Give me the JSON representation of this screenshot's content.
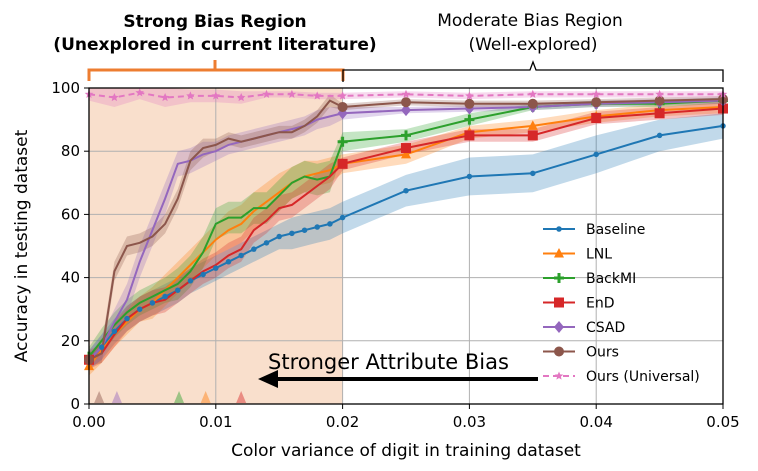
{
  "chart_data": {
    "type": "line",
    "xlabel": "Color variance of digit in training dataset",
    "ylabel": "Accuracy in testing dataset",
    "xlim": [
      0,
      0.05
    ],
    "ylim": [
      0,
      100
    ],
    "xticks": [
      "0.00",
      "0.01",
      "0.02",
      "0.03",
      "0.04",
      "0.05"
    ],
    "yticks": [
      "0",
      "20",
      "40",
      "60",
      "80",
      "100"
    ],
    "grid": true,
    "legend_position": "lower-right",
    "regions": {
      "strong_title_1": "Strong Bias Region",
      "strong_title_2": "(Unexplored in current literature)",
      "strong_range": [
        0,
        0.02
      ],
      "moderate_title_1": "Moderate Bias Region",
      "moderate_title_2": "(Well-explored)",
      "moderate_range": [
        0.02,
        0.05
      ]
    },
    "arrow_label": "Stronger  Attribute  Bias",
    "series": [
      {
        "name": "Baseline",
        "color": "#1f77b4",
        "marker": "dot",
        "x": [
          0,
          0.001,
          0.002,
          0.003,
          0.004,
          0.005,
          0.006,
          0.007,
          0.008,
          0.009,
          0.01,
          0.011,
          0.012,
          0.013,
          0.014,
          0.015,
          0.016,
          0.017,
          0.018,
          0.019,
          0.02,
          0.025,
          0.03,
          0.035,
          0.04,
          0.045,
          0.05
        ],
        "y": [
          14,
          18,
          23,
          27,
          30,
          32,
          34,
          36,
          39,
          41,
          43,
          45,
          47,
          49,
          51,
          53,
          54,
          55,
          56,
          57,
          59,
          67.5,
          72,
          73,
          79,
          85,
          88
        ],
        "band": [
          3,
          4,
          4,
          4,
          4,
          4,
          4,
          4,
          4,
          4,
          4,
          4,
          4,
          4,
          4,
          4,
          5,
          5,
          5,
          5,
          5,
          5,
          6,
          6,
          6,
          5,
          4
        ]
      },
      {
        "name": "LNL",
        "color": "#ff7f0e",
        "marker": "triangle",
        "x": [
          0,
          0.001,
          0.002,
          0.003,
          0.004,
          0.005,
          0.006,
          0.007,
          0.008,
          0.009,
          0.01,
          0.011,
          0.012,
          0.013,
          0.014,
          0.015,
          0.016,
          0.017,
          0.018,
          0.019,
          0.02,
          0.025,
          0.03,
          0.035,
          0.04,
          0.045,
          0.05
        ],
        "y": [
          12,
          17,
          22,
          26,
          30,
          32,
          36,
          40,
          44,
          48,
          52,
          55,
          57,
          61,
          64,
          67,
          70,
          72,
          73,
          74,
          76,
          79,
          86,
          88,
          91,
          93,
          94
        ],
        "band": [
          3,
          4,
          4,
          4,
          4,
          5,
          5,
          5,
          5,
          5,
          5,
          6,
          6,
          6,
          6,
          6,
          5,
          5,
          4,
          4,
          3,
          3,
          2,
          2,
          2,
          2,
          2
        ]
      },
      {
        "name": "BackMI",
        "color": "#2ca02c",
        "marker": "plus",
        "x": [
          0,
          0.001,
          0.002,
          0.003,
          0.004,
          0.005,
          0.006,
          0.007,
          0.008,
          0.009,
          0.01,
          0.011,
          0.012,
          0.013,
          0.014,
          0.015,
          0.016,
          0.017,
          0.018,
          0.019,
          0.02,
          0.025,
          0.03,
          0.035,
          0.04,
          0.045,
          0.05
        ],
        "y": [
          15,
          20,
          25,
          29,
          32,
          34,
          36,
          38,
          42,
          48,
          57,
          59,
          59,
          62,
          62,
          66,
          70,
          72,
          71,
          72,
          83,
          85,
          90,
          94,
          95,
          95,
          96
        ],
        "band": [
          3,
          4,
          4,
          4,
          4,
          4,
          4,
          5,
          5,
          5,
          5,
          5,
          5,
          5,
          5,
          5,
          5,
          5,
          5,
          5,
          3,
          2,
          2,
          1,
          1,
          1,
          1
        ]
      },
      {
        "name": "EnD",
        "color": "#d62728",
        "marker": "square",
        "x": [
          0,
          0.001,
          0.002,
          0.003,
          0.004,
          0.005,
          0.006,
          0.007,
          0.008,
          0.009,
          0.01,
          0.011,
          0.012,
          0.013,
          0.014,
          0.015,
          0.016,
          0.017,
          0.018,
          0.019,
          0.02,
          0.025,
          0.03,
          0.035,
          0.04,
          0.045,
          0.05
        ],
        "y": [
          14,
          16,
          22,
          27,
          30,
          32,
          33,
          36,
          39,
          42,
          44,
          47,
          49,
          55,
          58,
          62,
          63,
          66,
          69,
          72,
          76,
          81,
          85,
          85,
          90.5,
          92,
          93.5
        ],
        "band": [
          3,
          3,
          4,
          4,
          4,
          4,
          4,
          4,
          4,
          4,
          4,
          4,
          4,
          4,
          4,
          4,
          4,
          4,
          4,
          4,
          2,
          2,
          2,
          2,
          2,
          2,
          2
        ]
      },
      {
        "name": "CSAD",
        "color": "#9467bd",
        "marker": "diamond",
        "x": [
          0,
          0.001,
          0.002,
          0.003,
          0.004,
          0.005,
          0.006,
          0.007,
          0.008,
          0.009,
          0.01,
          0.011,
          0.012,
          0.013,
          0.014,
          0.015,
          0.016,
          0.017,
          0.018,
          0.019,
          0.02,
          0.025,
          0.03,
          0.035,
          0.04,
          0.045,
          0.05
        ],
        "y": [
          14,
          18,
          26,
          33,
          45,
          55,
          65,
          76,
          77,
          79,
          80,
          82,
          83,
          84,
          85,
          86,
          87,
          88,
          90,
          91,
          92,
          93,
          93.5,
          94,
          95,
          95.5,
          96
        ],
        "band": [
          3,
          4,
          4,
          5,
          5,
          5,
          5,
          4,
          4,
          4,
          3,
          3,
          3,
          3,
          3,
          3,
          3,
          3,
          3,
          3,
          2,
          1,
          1,
          1,
          1,
          1,
          1
        ]
      },
      {
        "name": "Ours",
        "color": "#8c564b",
        "marker": "circle",
        "x": [
          0,
          0.001,
          0.002,
          0.003,
          0.004,
          0.005,
          0.006,
          0.007,
          0.008,
          0.009,
          0.01,
          0.011,
          0.012,
          0.013,
          0.014,
          0.015,
          0.016,
          0.017,
          0.018,
          0.019,
          0.02,
          0.025,
          0.03,
          0.035,
          0.04,
          0.045,
          0.05
        ],
        "y": [
          14,
          16,
          42,
          50,
          51,
          53,
          57,
          65,
          77,
          81,
          82,
          84,
          83,
          84,
          85,
          86,
          86,
          88,
          91,
          96,
          94,
          95.5,
          95,
          95,
          95.5,
          96,
          96.5
        ],
        "band": [
          2,
          3,
          3,
          3,
          3,
          3,
          3,
          3,
          3,
          3,
          2,
          2,
          2,
          2,
          2,
          2,
          2,
          2,
          2,
          2,
          1,
          1,
          1,
          1,
          1,
          1,
          1
        ]
      },
      {
        "name": "Ours (Universal)",
        "color": "#e377c2",
        "marker": "star",
        "dashed": true,
        "x": [
          0,
          0.002,
          0.004,
          0.006,
          0.008,
          0.01,
          0.012,
          0.014,
          0.016,
          0.018,
          0.02,
          0.025,
          0.03,
          0.035,
          0.04,
          0.045,
          0.05
        ],
        "y": [
          98,
          97,
          98.5,
          97,
          97.5,
          97.5,
          97,
          98,
          98,
          97.5,
          97.5,
          98,
          97.5,
          98,
          98,
          98,
          98
        ],
        "band": [
          2,
          3,
          2,
          3,
          2,
          2,
          2,
          1,
          1,
          1,
          1,
          1,
          1,
          1,
          1,
          1,
          1
        ]
      }
    ],
    "bottom_markers": [
      {
        "x": 0.0008,
        "color": "#8c564b"
      },
      {
        "x": 0.0022,
        "color": "#9467bd"
      },
      {
        "x": 0.0071,
        "color": "#2ca02c"
      },
      {
        "x": 0.0092,
        "color": "#ff7f0e"
      },
      {
        "x": 0.012,
        "color": "#d62728"
      }
    ]
  }
}
